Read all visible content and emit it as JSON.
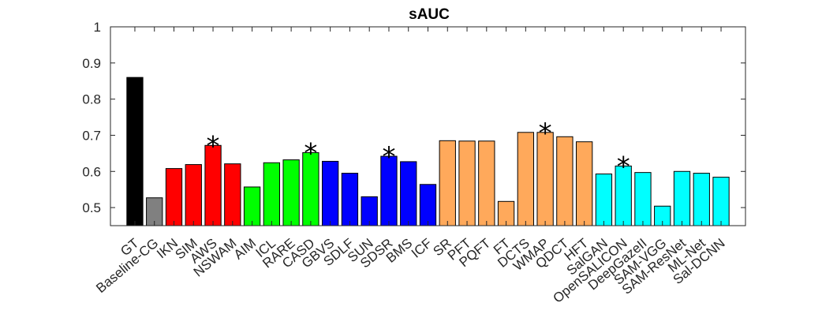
{
  "chart_data": {
    "type": "bar",
    "title": "sAUC",
    "xlabel": "",
    "ylabel": "",
    "ylim": [
      0.45,
      1.0
    ],
    "yticks": [
      0.5,
      0.6,
      0.7,
      0.8,
      0.9,
      1
    ],
    "ytick_labels": [
      "0.5",
      "0.6",
      "0.7",
      "0.8",
      "0.9",
      "1"
    ],
    "grid": false,
    "categories": [
      "GT",
      "Baseline-CG",
      "IKN",
      "SIM",
      "AWS",
      "NSWAM",
      "AIM",
      "ICL",
      "RARE",
      "CASD",
      "GBVS",
      "SDLF",
      "SUN",
      "SDSR",
      "BMS",
      "ICF",
      "SR",
      "PFT",
      "PQFT",
      "FT",
      "DCTS",
      "WMAP",
      "QDCT",
      "HFT",
      "SalGAN",
      "OpenSALICON",
      "DeepGazeII",
      "SAM-VGG",
      "SAM-ResNet",
      "ML-Net",
      "Sal-DCNN"
    ],
    "values": [
      0.86,
      0.527,
      0.608,
      0.619,
      0.672,
      0.621,
      0.557,
      0.624,
      0.632,
      0.652,
      0.628,
      0.595,
      0.53,
      0.642,
      0.627,
      0.564,
      0.685,
      0.684,
      0.684,
      0.517,
      0.708,
      0.708,
      0.696,
      0.682,
      0.593,
      0.615,
      0.597,
      0.504,
      0.6,
      0.595,
      0.584
    ],
    "colors": [
      "#000000",
      "#808080",
      "#ff0000",
      "#ff0000",
      "#ff0000",
      "#ff0000",
      "#00ff00",
      "#00ff00",
      "#00ff00",
      "#00ff00",
      "#0000ff",
      "#0000ff",
      "#0000ff",
      "#0000ff",
      "#0000ff",
      "#0000ff",
      "#ffa95b",
      "#ffa95b",
      "#ffa95b",
      "#ffa95b",
      "#ffa95b",
      "#ffa95b",
      "#ffa95b",
      "#ffa95b",
      "#00ffff",
      "#00ffff",
      "#00ffff",
      "#00ffff",
      "#00ffff",
      "#00ffff",
      "#00ffff"
    ],
    "annotations": [
      {
        "category": "AWS",
        "text": "*"
      },
      {
        "category": "CASD",
        "text": "*"
      },
      {
        "category": "SDSR",
        "text": "*"
      },
      {
        "category": "WMAP",
        "text": "*"
      },
      {
        "category": "OpenSALICON",
        "text": "*"
      }
    ]
  }
}
